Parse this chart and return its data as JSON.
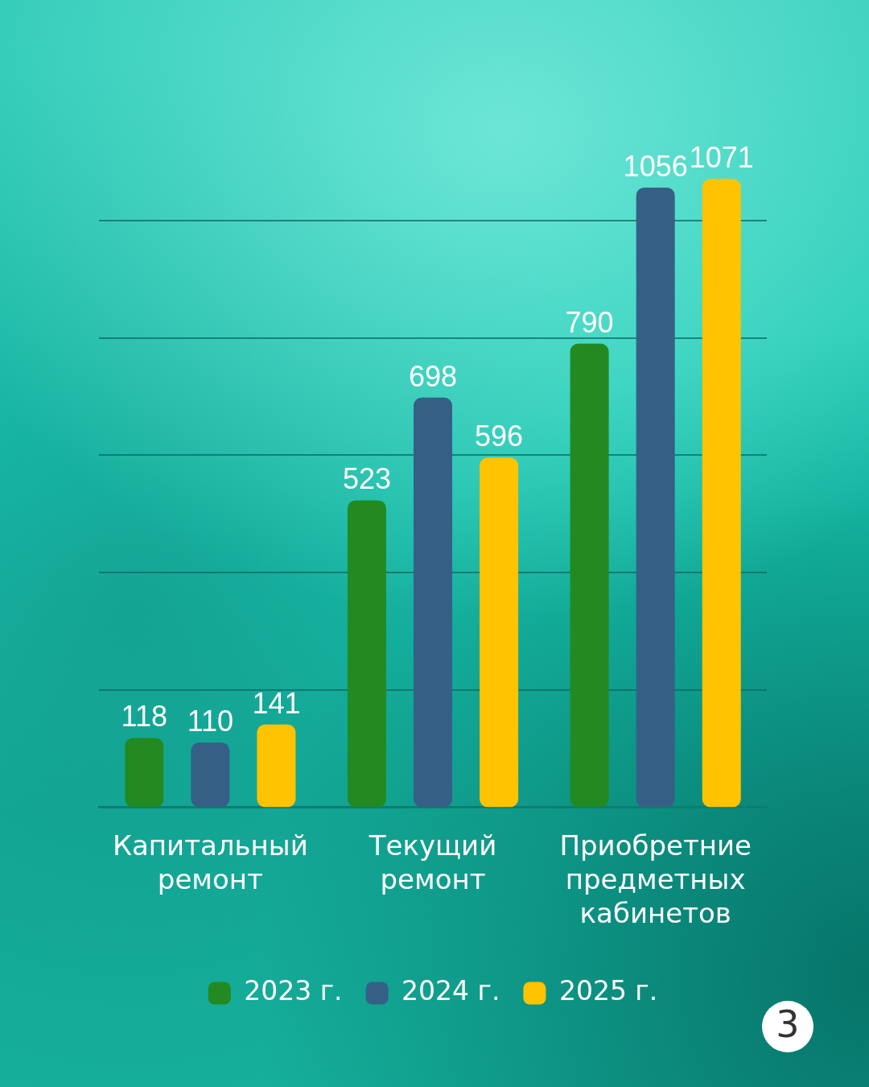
{
  "chart_data": {
    "type": "bar",
    "categories": [
      "Капитальный ремонт",
      "Текущий ремонт",
      "Приобретние предметных кабинетов"
    ],
    "series": [
      {
        "name": "2023 г.",
        "color": "#238a22",
        "values": [
          118,
          523,
          790
        ]
      },
      {
        "name": "2024 г.",
        "color": "#365f86",
        "values": [
          110,
          698,
          1056
        ]
      },
      {
        "name": "2025 г.",
        "color": "#ffc300",
        "values": [
          141,
          596,
          1071
        ]
      }
    ],
    "ylim": [
      0,
      1071
    ],
    "yticks": [
      {
        "value": 200,
        "label": null
      },
      {
        "value": 400,
        "label": null
      },
      {
        "value": 600,
        "label": null
      },
      {
        "value": 800,
        "label": null
      },
      {
        "value": 1000,
        "label": null
      }
    ],
    "grid": "y",
    "tick_labels": "x",
    "legend": "bottom",
    "data_labels": true,
    "annotations": [
      "3"
    ]
  }
}
